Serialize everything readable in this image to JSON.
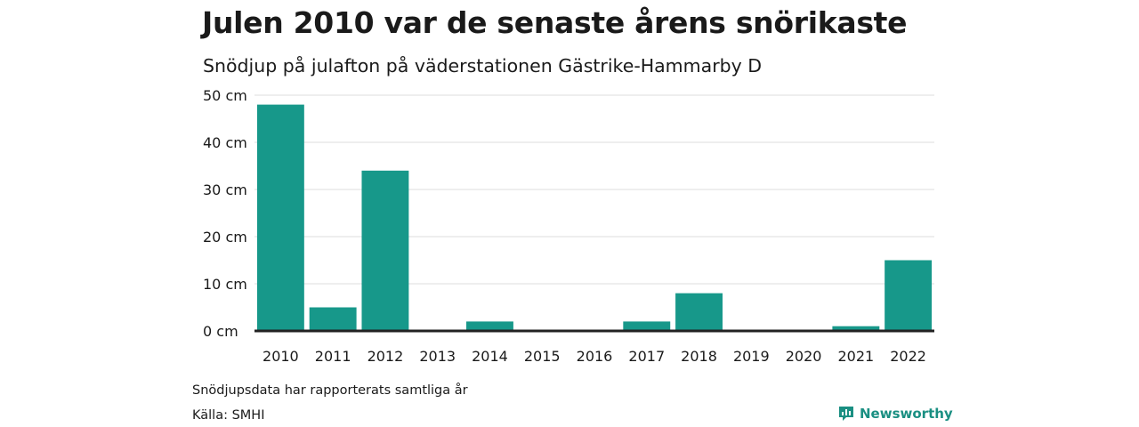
{
  "title": "Julen 2010 var de senaste årens snörikaste",
  "subtitle": "Snödjup på julafton på väderstationen Gästrike-Hammarby D",
  "note": "Snödjupsdata har rapporterats samtliga år",
  "source": "Källa: SMHI",
  "brand": {
    "name": "Newsworthy",
    "icon": "newsworthy-logo-icon"
  },
  "colors": {
    "bar": "#17988a",
    "grid": "#dddddd",
    "baseline": "#222222",
    "brand": "#1a8f82"
  },
  "chart_data": {
    "type": "bar",
    "title": "Julen 2010 var de senaste årens snörikaste",
    "subtitle": "Snödjup på julafton på väderstationen Gästrike-Hammarby D",
    "xlabel": "",
    "ylabel": "",
    "categories": [
      "2010",
      "2011",
      "2012",
      "2013",
      "2014",
      "2015",
      "2016",
      "2017",
      "2018",
      "2019",
      "2020",
      "2021",
      "2022"
    ],
    "values": [
      48,
      5,
      34,
      0,
      2,
      0,
      0,
      2,
      8,
      0,
      0,
      1,
      15
    ],
    "ylim": [
      0,
      50
    ],
    "yticks": [
      0,
      10,
      20,
      30,
      40,
      50
    ],
    "ytick_labels": [
      "0 cm",
      "10 cm",
      "20 cm",
      "30 cm",
      "40 cm",
      "50 cm"
    ],
    "grid": true,
    "legend": "none"
  }
}
